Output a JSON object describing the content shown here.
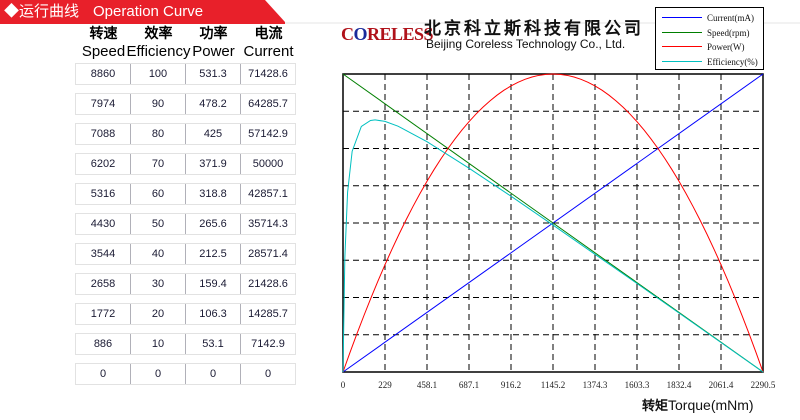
{
  "banner": {
    "title_cn": "◆运行曲线",
    "title_en": "Operation Curve",
    "color": "#e8202a"
  },
  "table": {
    "headers": [
      {
        "cn": "转速",
        "en": "Speed"
      },
      {
        "cn": "效率",
        "en": "Efficiency"
      },
      {
        "cn": "功率",
        "en": "Power"
      },
      {
        "cn": "电流",
        "en": "Current"
      }
    ],
    "rows": [
      [
        "8860",
        "100",
        "531.3",
        "71428.6"
      ],
      [
        "7974",
        "90",
        "478.2",
        "64285.7"
      ],
      [
        "7088",
        "80",
        "425",
        "57142.9"
      ],
      [
        "6202",
        "70",
        "371.9",
        "50000"
      ],
      [
        "5316",
        "60",
        "318.8",
        "42857.1"
      ],
      [
        "4430",
        "50",
        "265.6",
        "35714.3"
      ],
      [
        "3544",
        "40",
        "212.5",
        "28571.4"
      ],
      [
        "2658",
        "30",
        "159.4",
        "21428.6"
      ],
      [
        "1772",
        "20",
        "106.3",
        "14285.7"
      ],
      [
        "886",
        "10",
        "53.1",
        "7142.9"
      ],
      [
        "0",
        "0",
        "0",
        "0"
      ]
    ]
  },
  "company": {
    "logo": "CORELESS",
    "name_cn": "北京科立斯科技有限公司",
    "name_en": "Beijing Coreless Technology Co., Ltd."
  },
  "chart_data": {
    "type": "line",
    "xlabel_cn": "转矩",
    "xlabel": "Torque(mNm)",
    "xlim": [
      0,
      2290.5
    ],
    "x_ticks": [
      "0",
      "229",
      "458.1",
      "687.1",
      "916.2",
      "1145.2",
      "1374.3",
      "1603.3",
      "1832.4",
      "2061.4",
      "2290.5"
    ],
    "grid": true,
    "legend_placement": "top-right",
    "series": [
      {
        "name": "Current(mA)",
        "color": "#0000ff",
        "ymax": 71428.6,
        "x": [
          0,
          2290.5
        ],
        "y": [
          0,
          71428.6
        ]
      },
      {
        "name": "Speed(rpm)",
        "color": "#007f00",
        "ymax": 8860,
        "x": [
          0,
          2290.5
        ],
        "y": [
          8860,
          0
        ]
      },
      {
        "name": "Power(W)",
        "color": "#ff0000",
        "ymax": 531.3,
        "x": [
          0,
          229,
          458.1,
          687.1,
          916.2,
          1145.2,
          1374.3,
          1603.3,
          1832.4,
          2061.4,
          2290.5
        ],
        "y": [
          0,
          191.3,
          340.0,
          446.3,
          510.0,
          531.3,
          510.0,
          446.3,
          340.0,
          191.3,
          0
        ]
      },
      {
        "name": "Efficiency(%)",
        "color": "#00c0c0",
        "ymax": 100,
        "x": [
          0,
          10,
          25,
          50,
          100,
          150,
          175,
          229,
          300,
          458.1,
          687.1,
          916.2,
          1145.2,
          1374.3,
          1603.3,
          1832.4,
          2061.4,
          2290.5
        ],
        "y": [
          0,
          38.3,
          60.3,
          74.1,
          82.4,
          84.4,
          84.6,
          84.1,
          82.5,
          77.3,
          68.4,
          59.0,
          49.3,
          39.5,
          29.7,
          19.8,
          9.9,
          0
        ]
      }
    ]
  }
}
